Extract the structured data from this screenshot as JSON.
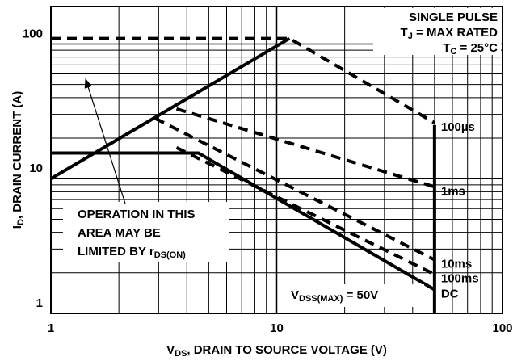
{
  "chart_data": {
    "type": "line",
    "log_x": true,
    "log_y": true,
    "x_label": [
      "V",
      "DS",
      ", DRAIN TO SOURCE VOLTAGE (V)"
    ],
    "y_label": [
      "I",
      "D",
      ", DRAIN CURRENT (A)"
    ],
    "xlim": [
      1,
      100
    ],
    "ylim": [
      1,
      190
    ],
    "xticks": [
      1,
      10,
      100
    ],
    "yticks": [
      1,
      10,
      100
    ],
    "xgrid": [
      2,
      3,
      4,
      5,
      6,
      7,
      8,
      9,
      20,
      30,
      40,
      50,
      60,
      70,
      80,
      90
    ],
    "ygrid": [
      2,
      3,
      4,
      5,
      6,
      7,
      8,
      9,
      20,
      30,
      40,
      50,
      60,
      70,
      80,
      90
    ],
    "annotations": [
      [
        "SINGLE PULSE"
      ],
      [
        "T",
        "J",
        " = MAX RATED"
      ],
      [
        "T",
        "C",
        " = 25°C"
      ]
    ],
    "note": [
      [
        "OPERATION IN THIS"
      ],
      [
        "AREA MAY BE"
      ],
      [
        "LIMITED BY r",
        "DS(ON)",
        ""
      ]
    ],
    "vdss_label": [
      "V",
      "DSS(MAX)",
      " = 50V"
    ],
    "series": [
      {
        "style": "solid",
        "x": [
          1,
          11.4
        ],
        "values": [
          10,
          110
        ]
      },
      {
        "name": "100µs",
        "style": "dashed",
        "x": [
          1,
          11.4,
          50
        ],
        "values": [
          110,
          110,
          26
        ]
      },
      {
        "name": "1ms",
        "style": "dashed",
        "x": [
          3.6,
          50
        ],
        "values": [
          33,
          8.7
        ]
      },
      {
        "name": "10ms",
        "style": "dashed",
        "x": [
          2.9,
          50
        ],
        "values": [
          28,
          2.5
        ]
      },
      {
        "name": "100ms",
        "style": "dashed",
        "x": [
          3.6,
          50
        ],
        "values": [
          17,
          1.95
        ]
      },
      {
        "name": "DC",
        "style": "solid",
        "x": [
          1,
          4.5,
          50
        ],
        "values": [
          15.5,
          15.5,
          1.5
        ]
      },
      {
        "style": "solid",
        "x": [
          50,
          50
        ],
        "values": [
          1,
          25
        ]
      }
    ]
  }
}
